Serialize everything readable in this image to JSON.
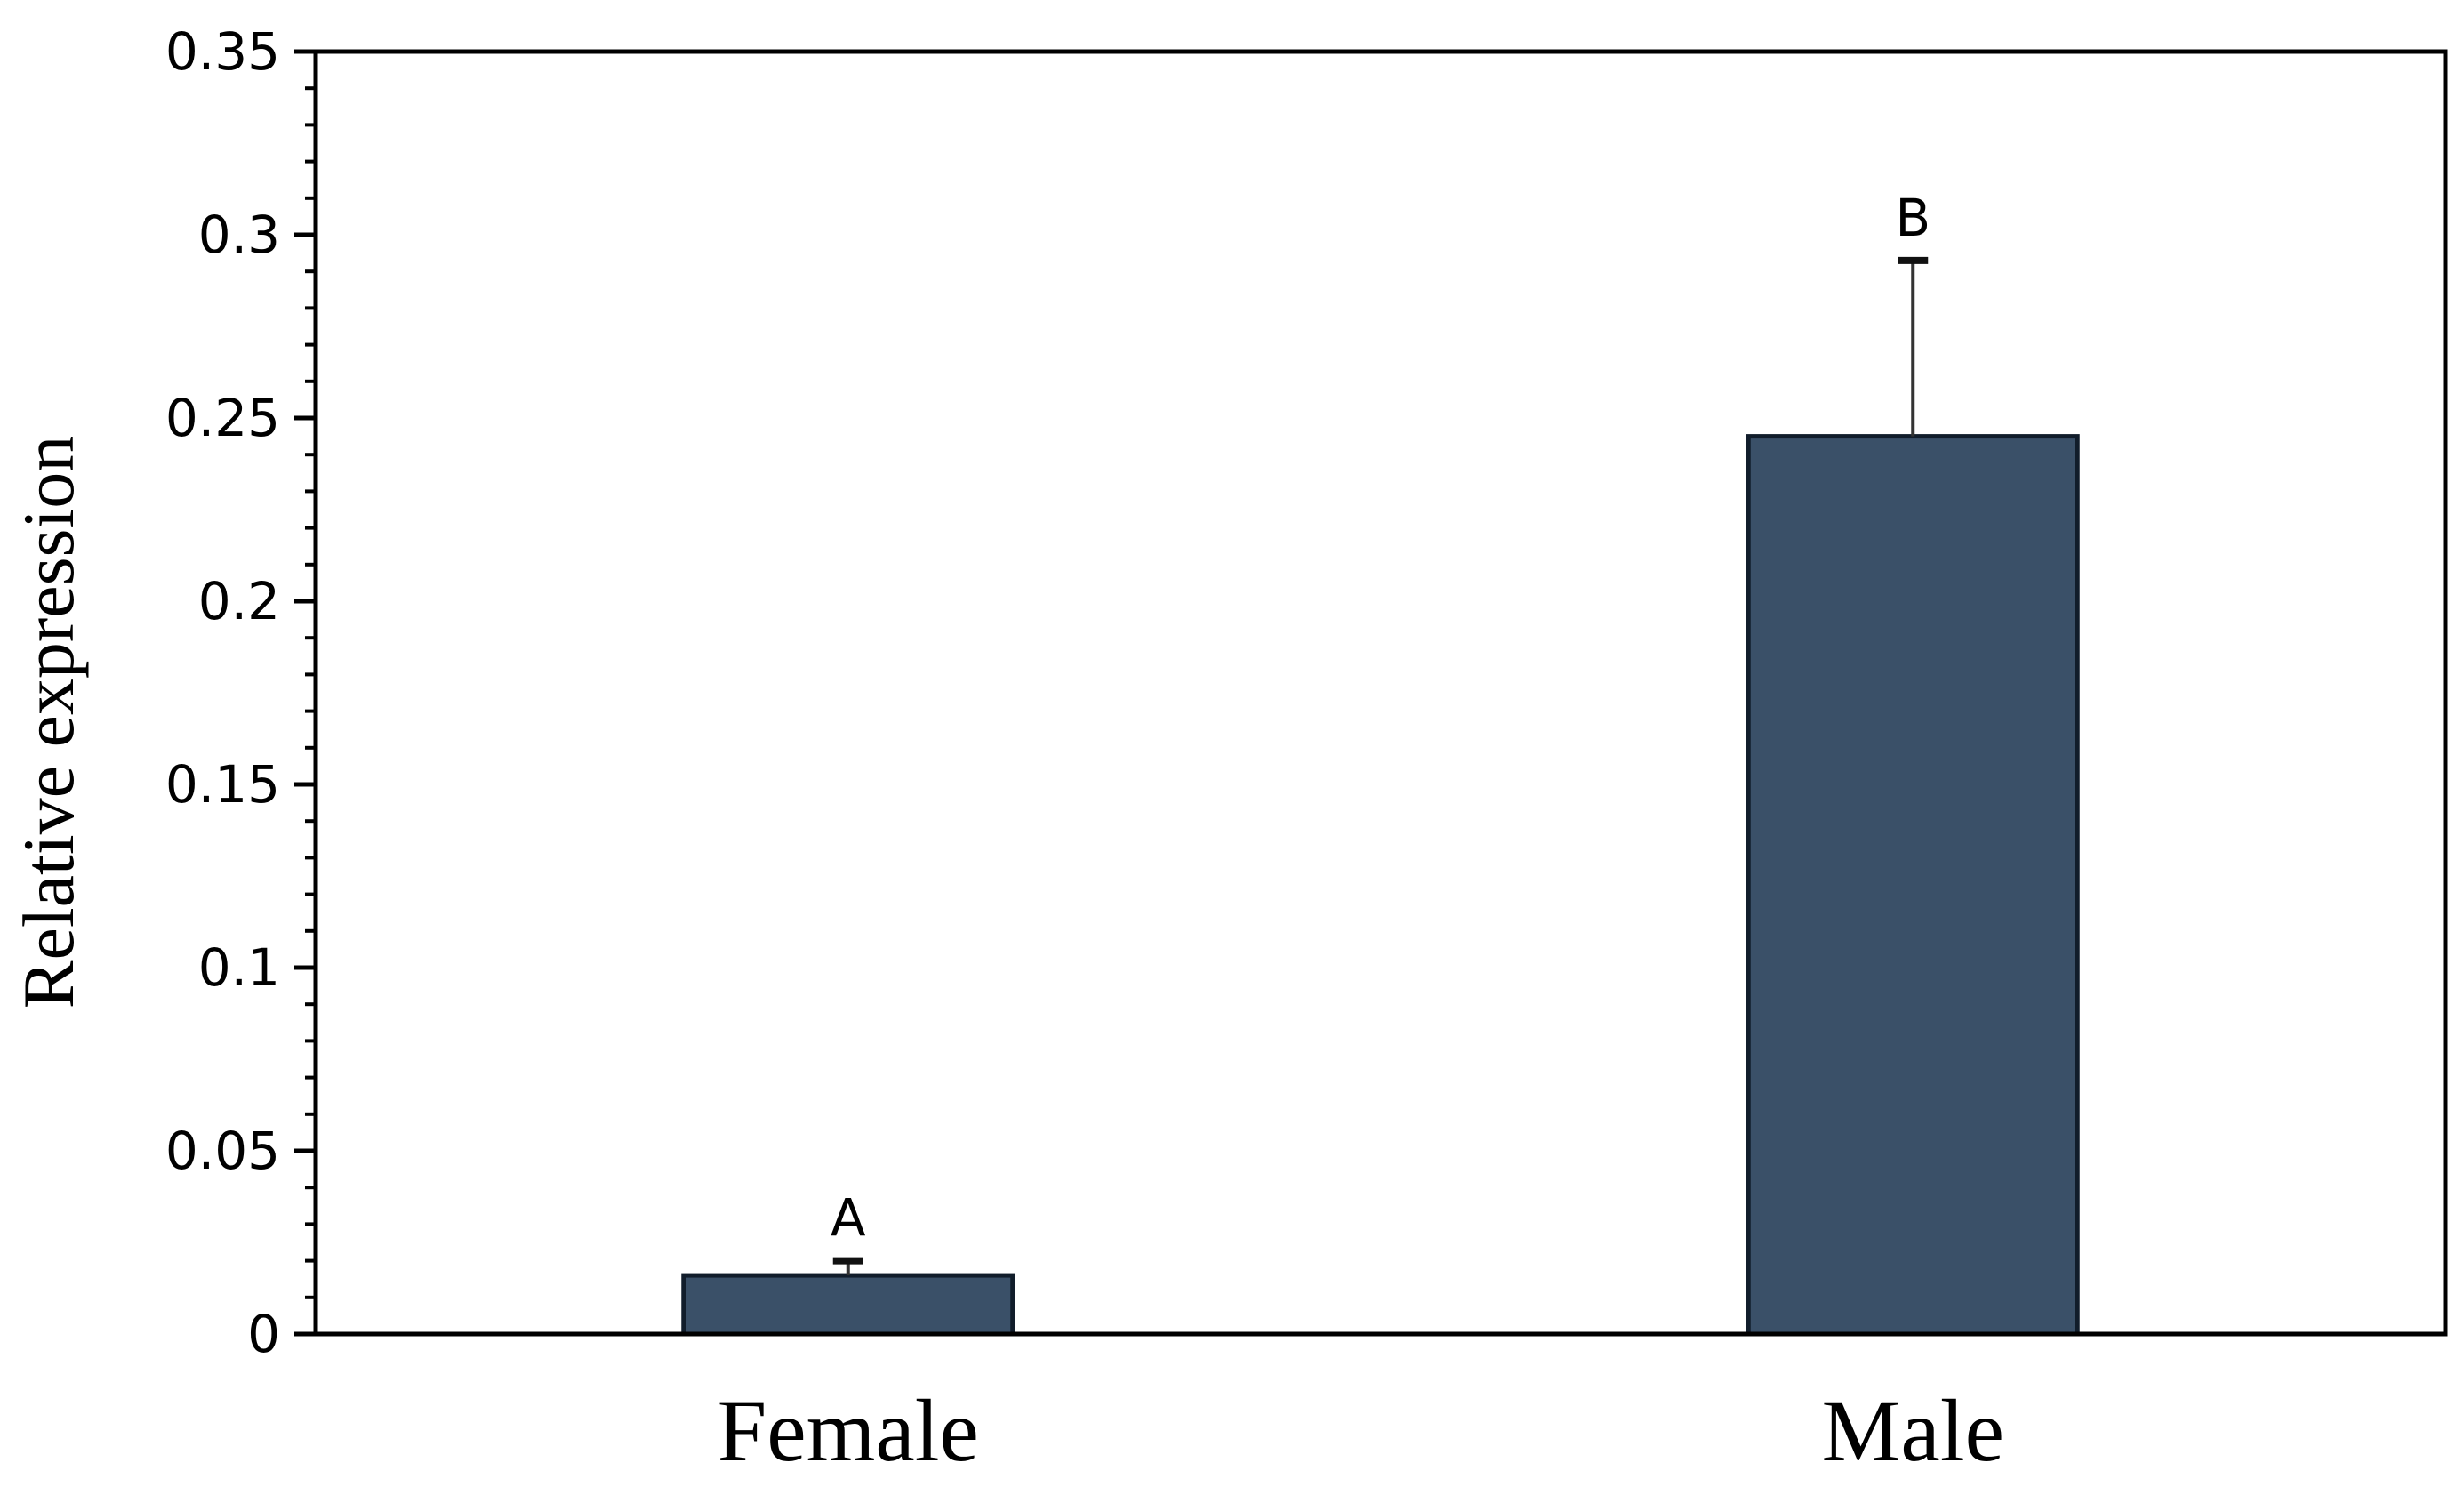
{
  "chart_data": {
    "type": "bar",
    "title": "",
    "xlabel": "",
    "ylabel": "Relative expression",
    "categories": [
      "Female",
      "Male"
    ],
    "values": [
      0.016,
      0.245
    ],
    "error_upper": [
      0.004,
      0.048
    ],
    "annotations": [
      "A",
      "B"
    ],
    "ylim": [
      0,
      0.35
    ],
    "yticks": [
      0,
      0.05,
      0.1,
      0.15,
      0.2,
      0.25,
      0.3,
      0.35
    ],
    "ytick_labels": [
      "0",
      "0.05",
      "0.1",
      "0.15",
      "0.2",
      "0.25",
      "0.3",
      "0.35"
    ],
    "minor_ticks_per_major": 5,
    "grid": false,
    "legend": "none",
    "bar_color": "#3a5068",
    "bar_edge_color": "#111d2b"
  }
}
